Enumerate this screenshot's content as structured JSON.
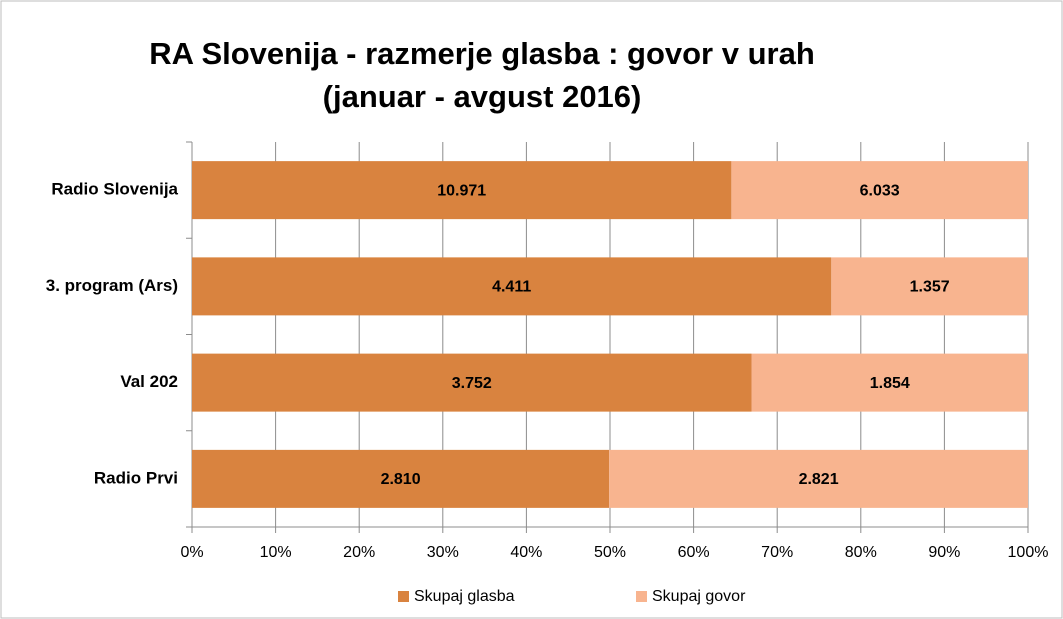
{
  "chart_data": {
    "type": "bar",
    "orientation": "horizontal",
    "stack": "percent",
    "title": [
      "RA Slovenija - razmerje glasba : govor v urah",
      "(januar - avgust 2016)"
    ],
    "categories": [
      "Radio Slovenija",
      "3. program (Ars)",
      "Val 202",
      "Radio Prvi"
    ],
    "series": [
      {
        "name": "Skupaj glasba",
        "color": "#d9833f",
        "values": [
          10971,
          4411,
          3752,
          2810
        ],
        "value_labels": [
          "10.971",
          "4.411",
          "3.752",
          "2.810"
        ]
      },
      {
        "name": "Skupaj govor",
        "color": "#f8b48f",
        "values": [
          6033,
          1357,
          1854,
          2821
        ],
        "value_labels": [
          "6.033",
          "1.357",
          "1.854",
          "2.821"
        ]
      }
    ],
    "xlim": [
      0,
      100
    ],
    "xticks": [
      {
        "value": 0,
        "label": "0%"
      },
      {
        "value": 10,
        "label": "10%"
      },
      {
        "value": 20,
        "label": "20%"
      },
      {
        "value": 30,
        "label": "30%"
      },
      {
        "value": 40,
        "label": "40%"
      },
      {
        "value": 50,
        "label": "50%"
      },
      {
        "value": 60,
        "label": "60%"
      },
      {
        "value": 70,
        "label": "70%"
      },
      {
        "value": 80,
        "label": "80%"
      },
      {
        "value": 90,
        "label": "90%"
      },
      {
        "value": 100,
        "label": "100%"
      }
    ],
    "grid": true,
    "legend": "bottom"
  }
}
